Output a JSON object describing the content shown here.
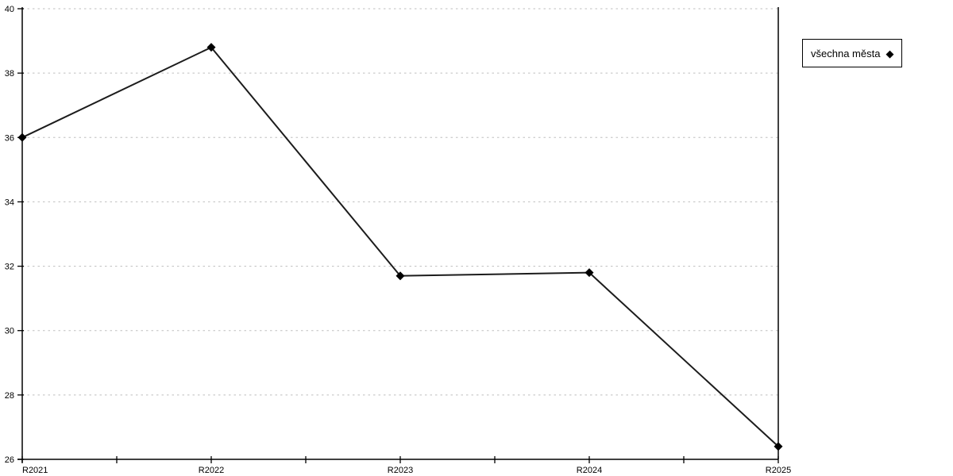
{
  "chart_data": {
    "type": "line",
    "title": "",
    "xlabel": "",
    "ylabel": "",
    "categories": [
      "R2021",
      "R2022",
      "R2023",
      "R2024",
      "R2025"
    ],
    "series": [
      {
        "name": "všechna města",
        "values": [
          36.0,
          38.8,
          31.7,
          31.8,
          26.4
        ]
      }
    ],
    "ylim": [
      26,
      40
    ],
    "yticks": [
      26,
      28,
      30,
      32,
      34,
      36,
      38,
      40
    ],
    "grid": "horizontal-dotted",
    "x_minor_ticks_between_categories": true,
    "marker": "diamond",
    "legend": {
      "position": "right-outside",
      "marker_glyph": "◆"
    },
    "colors": {
      "line": "#1c1c1c",
      "marker": "#000000",
      "grid": "#bfbfbf",
      "axis": "#000000",
      "text": "#000000",
      "background": "#ffffff"
    }
  }
}
